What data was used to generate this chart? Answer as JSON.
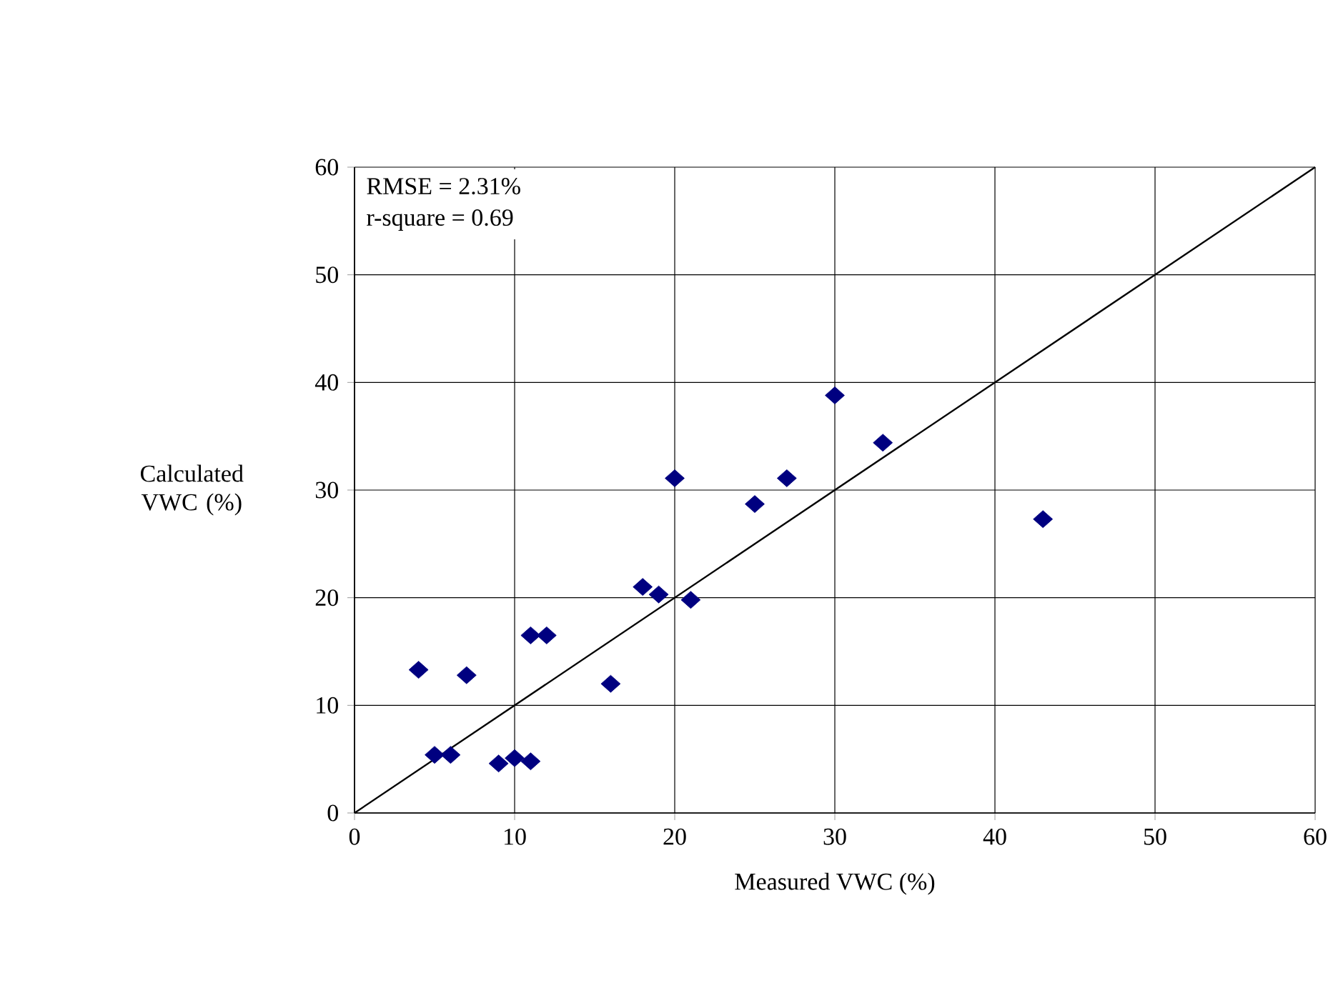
{
  "chart_data": {
    "type": "scatter",
    "xlabel": "Measured VWC (%)",
    "ylabel": "Calculated VWC (%)",
    "annotations": [
      "RMSE = 2.31%",
      "r-square = 0.69"
    ],
    "xlim": [
      0,
      60
    ],
    "ylim": [
      0,
      60
    ],
    "xticks": [
      0,
      10,
      20,
      30,
      40,
      50,
      60
    ],
    "yticks": [
      0,
      10,
      20,
      30,
      40,
      50,
      60
    ],
    "grid": true,
    "marker": "diamond",
    "series": [
      {
        "color": "#000080",
        "x": [
          4,
          7,
          5,
          6,
          9,
          10,
          11,
          11,
          12,
          16,
          18,
          19,
          21,
          20,
          25,
          27,
          30,
          33,
          43
        ],
        "values": [
          13.3,
          12.8,
          5.4,
          5.4,
          4.6,
          5.1,
          4.8,
          16.5,
          16.5,
          12.0,
          21.0,
          20.3,
          19.8,
          31.1,
          28.7,
          31.1,
          38.8,
          34.4,
          27.3
        ]
      },
      {
        "type": "line",
        "color": "#000000",
        "marker": "none",
        "line_style": "solid",
        "x": [
          0,
          60
        ],
        "values": [
          0,
          60
        ]
      }
    ]
  }
}
